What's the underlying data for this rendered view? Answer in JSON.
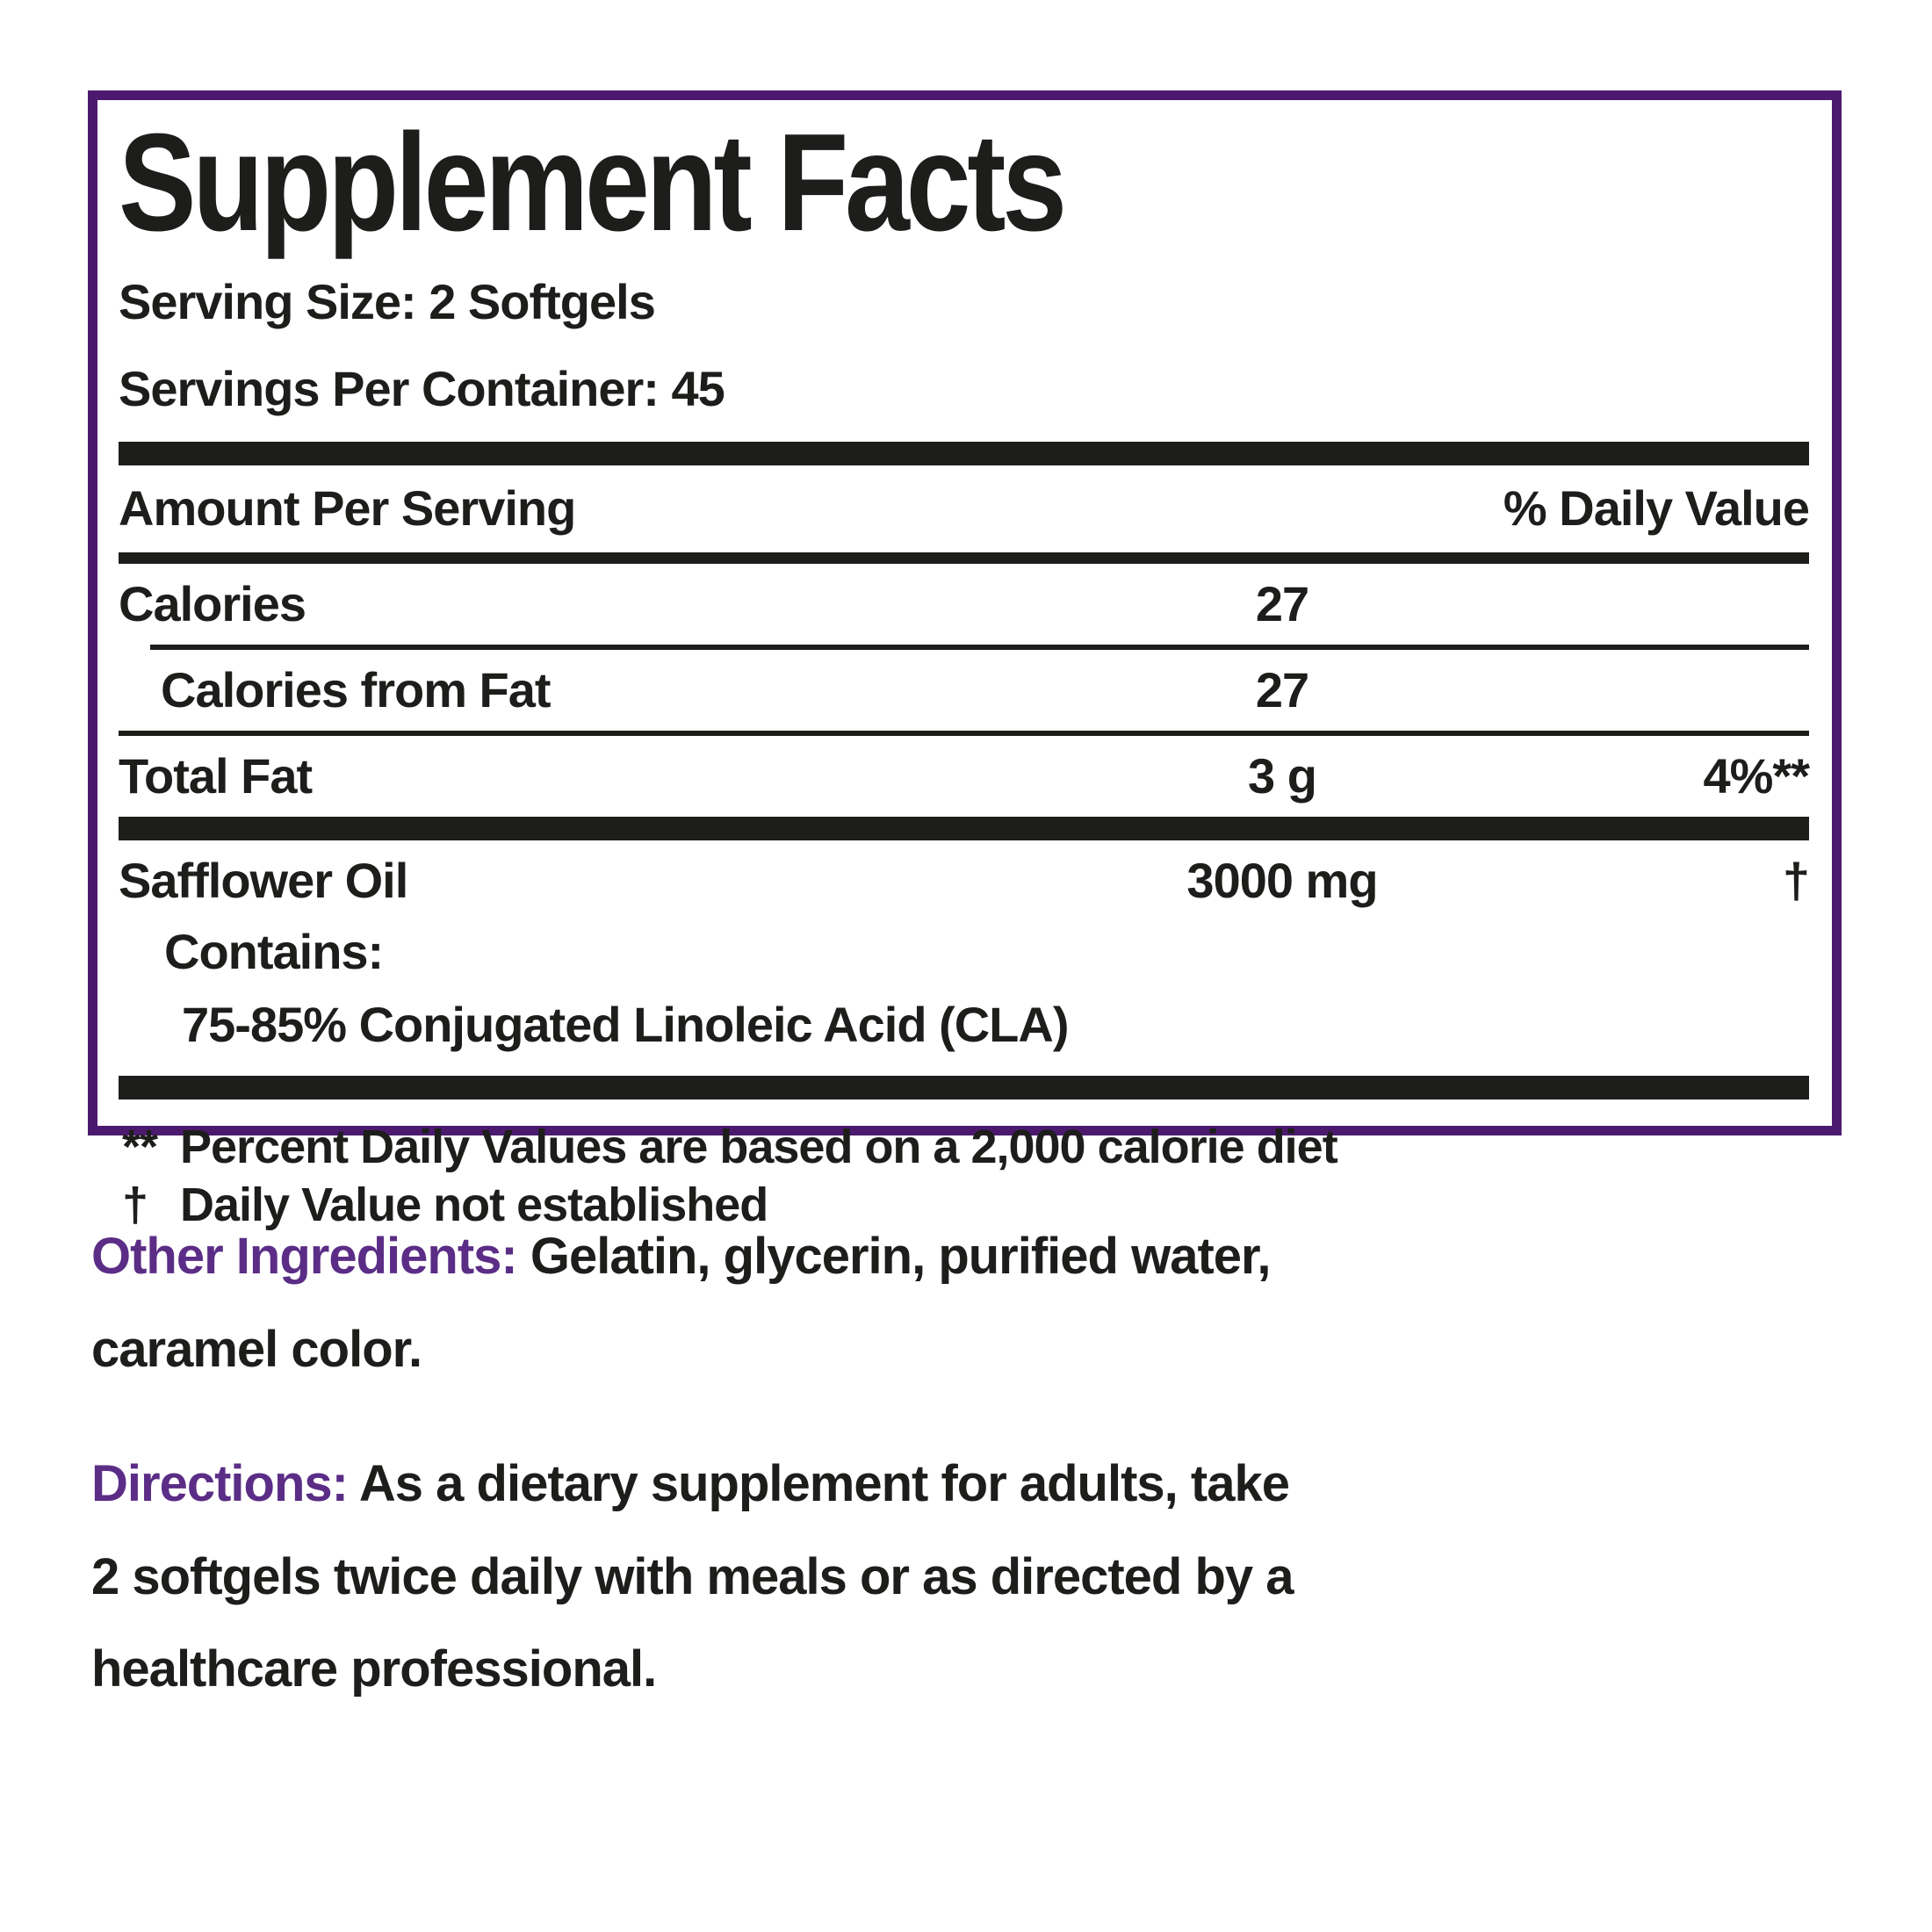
{
  "colors": {
    "purple_border": "#4b1a6e",
    "purple_label": "#5b2d86",
    "text_black": "#1d1d1b"
  },
  "facts": {
    "title": "Supplement Facts",
    "serving_size": "Serving Size: 2 Softgels",
    "servings_per_container": "Servings Per Container: 45",
    "header": {
      "amount_per_serving": "Amount Per Serving",
      "percent_daily_value": "% Daily Value"
    },
    "rows": {
      "calories": {
        "name": "Calories",
        "amount": "27",
        "dv": ""
      },
      "calories_from_fat": {
        "name": "Calories from Fat",
        "amount": "27",
        "dv": ""
      },
      "total_fat": {
        "name": "Total Fat",
        "amount": "3 g",
        "dv": "4%**"
      },
      "safflower_oil": {
        "name": "Safflower Oil",
        "amount": "3000 mg",
        "dv": "†"
      }
    },
    "sub_lines": {
      "contains": "Contains:",
      "cla": "75-85% Conjugated Linoleic Acid (CLA)"
    },
    "footnotes": {
      "dv_note": {
        "marker": "**",
        "text": "Percent Daily Values are based on a 2,000 calorie diet"
      },
      "dagger_note": {
        "marker": "†",
        "text": "Daily Value not established"
      }
    }
  },
  "other_ingredients": {
    "label": "Other Ingredients:",
    "line1": "Gelatin, glycerin, purified water,",
    "line2": "caramel color."
  },
  "directions": {
    "label": "Directions:",
    "line1": "As a dietary supplement for adults, take",
    "line2": "2 softgels twice daily with meals or as directed by a",
    "line3": "healthcare professional."
  }
}
